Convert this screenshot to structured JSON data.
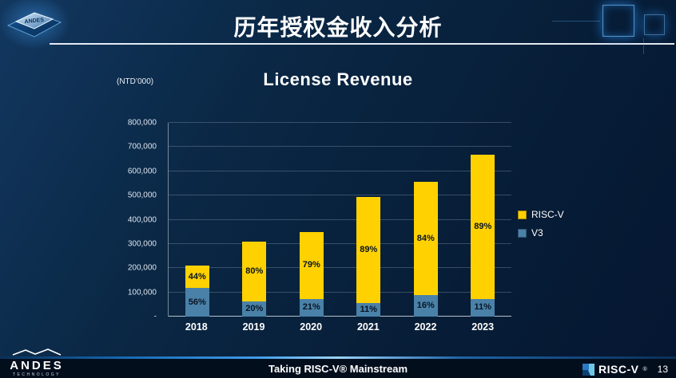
{
  "slide": {
    "title": "历年授权金收入分析",
    "chip_logo_text": "ANDES",
    "footer_text": "Taking RISC-V® Mainstream",
    "page_number": "13",
    "brand": {
      "name": "ANDES",
      "sub": "TECHNOLOGY"
    },
    "riscv_logo_text": "RISC-V",
    "riscv_logo_reg": "®"
  },
  "chart_data": {
    "type": "bar",
    "stacked": true,
    "title": "License Revenue",
    "unit_label": "(NTD’000)",
    "categories": [
      "2018",
      "2019",
      "2020",
      "2021",
      "2022",
      "2023"
    ],
    "series": [
      {
        "name": "V3",
        "color": "#4a81a8",
        "values": [
          118000,
          62000,
          73500,
          54500,
          89000,
          74000
        ],
        "pct_labels": [
          "56%",
          "20%",
          "21%",
          "11%",
          "16%",
          "11%"
        ]
      },
      {
        "name": "RISC-V",
        "color": "#ffd100",
        "values": [
          92000,
          248000,
          276500,
          440500,
          466000,
          596000
        ],
        "pct_labels": [
          "44%",
          "80%",
          "79%",
          "89%",
          "84%",
          "89%"
        ]
      }
    ],
    "totals": [
      210000,
      310000,
      350000,
      495000,
      555000,
      670000
    ],
    "ylim": [
      0,
      800000
    ],
    "ytick_step": 100000,
    "ytick_labels": [
      "-",
      "100,000",
      "200,000",
      "300,000",
      "400,000",
      "500,000",
      "600,000",
      "700,000",
      "800,000"
    ],
    "legend": [
      "RISC-V",
      "V3"
    ],
    "legend_position": "right",
    "grid": true
  }
}
